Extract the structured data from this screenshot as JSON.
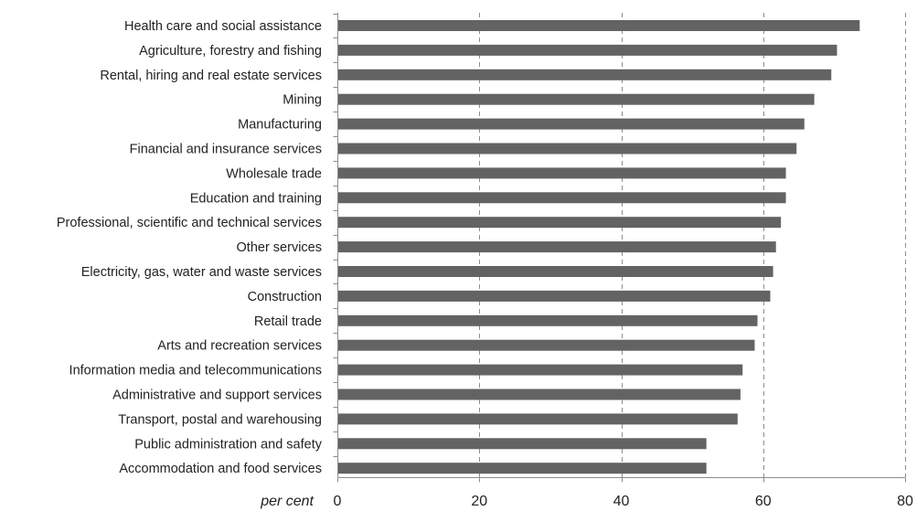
{
  "chart_data": {
    "type": "bar",
    "orientation": "horizontal",
    "categories": [
      "Health care and social assistance",
      "Agriculture, forestry and fishing",
      "Rental, hiring and real estate services",
      "Mining",
      "Manufacturing",
      "Financial and insurance services",
      "Wholesale trade",
      "Education and training",
      "Professional, scientific and technical services",
      "Other services",
      "Electricity, gas, water and waste services",
      "Construction",
      "Retail trade",
      "Arts and recreation services",
      "Information media and telecommunications",
      "Administrative and support services",
      "Transport, postal and warehousing",
      "Public administration and safety",
      "Accommodation and food services"
    ],
    "values": [
      73.6,
      70.4,
      69.6,
      67.2,
      65.8,
      64.7,
      63.2,
      63.2,
      62.5,
      61.8,
      61.4,
      61.0,
      59.2,
      58.8,
      57.1,
      56.8,
      56.4,
      52.0,
      52.0
    ],
    "xlabel": "per cent",
    "xlim": [
      0,
      80
    ],
    "xticks": [
      0,
      20,
      40,
      60,
      80
    ],
    "xtick_labels": [
      "0",
      "20",
      "40",
      "60",
      "80"
    ],
    "grid": "vertical dashed",
    "bar_color": "#636363",
    "grid_color": "#8c8c8c",
    "axis_color": "#8c8c8c"
  }
}
